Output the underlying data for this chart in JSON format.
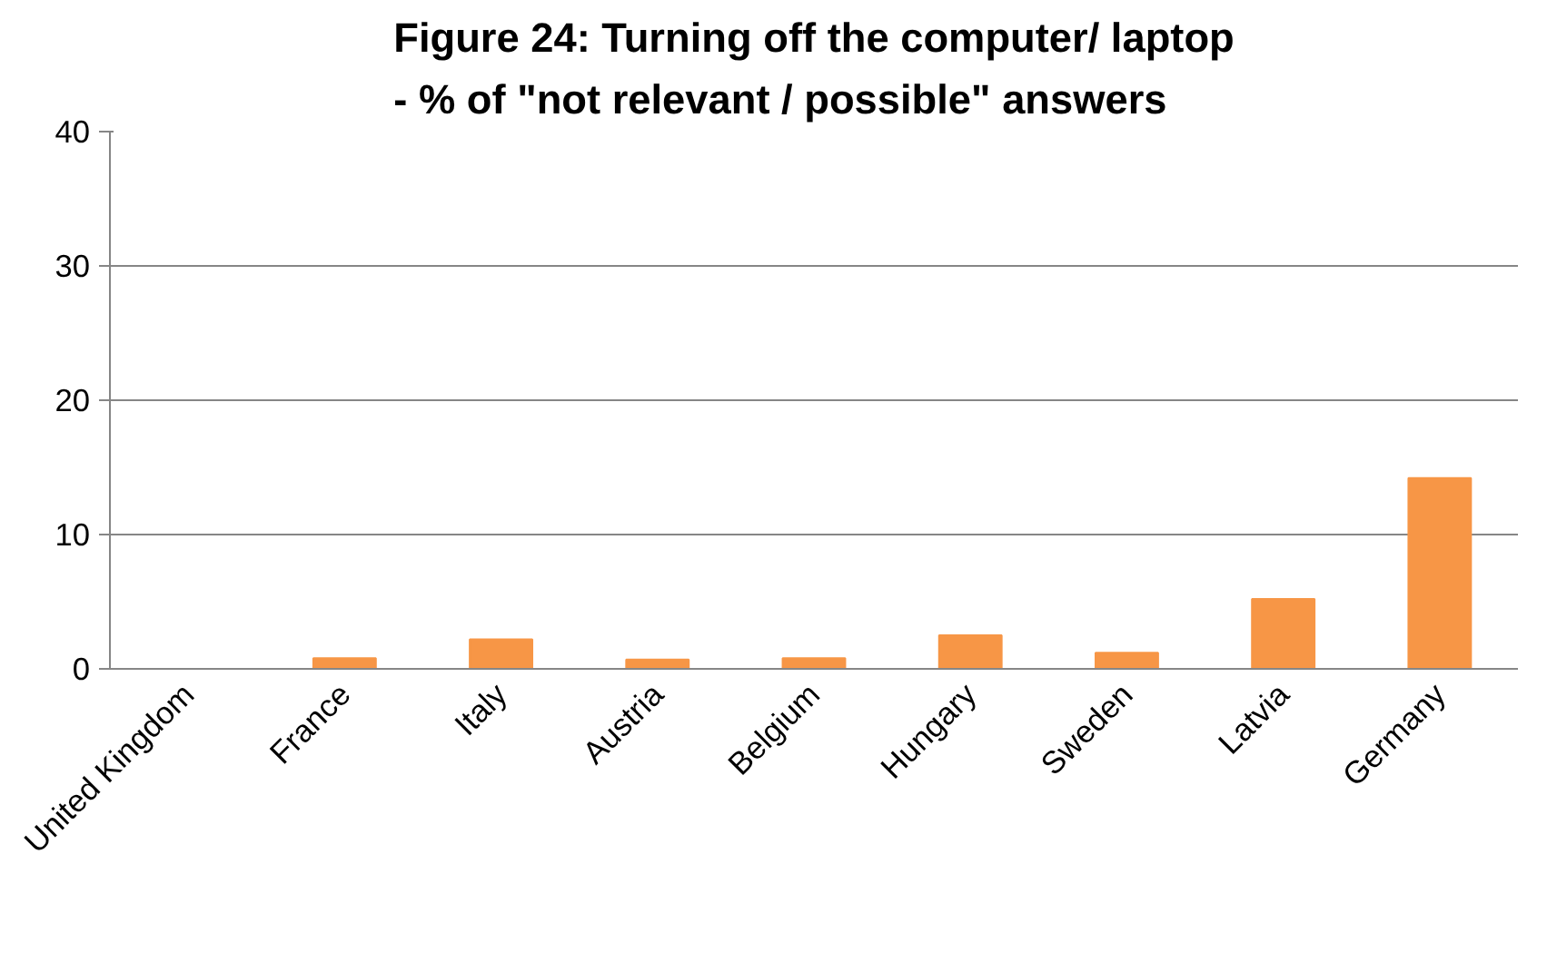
{
  "chart_data": {
    "type": "bar",
    "title": "Figure 24: Turning off the computer/ laptop\n- % of \"not relevant / possible\" answers",
    "categories": [
      "United Kingdom",
      "France",
      "Italy",
      "Austria",
      "Belgium",
      "Hungary",
      "Sweden",
      "Latvia",
      "Germany"
    ],
    "values": [
      0,
      0.8,
      2.2,
      0.7,
      0.8,
      2.5,
      1.2,
      5.2,
      14.2
    ],
    "color": "#f79646",
    "ylim": [
      0,
      40
    ],
    "yticks": [
      0,
      10,
      20,
      30,
      40
    ],
    "grid": "y"
  }
}
